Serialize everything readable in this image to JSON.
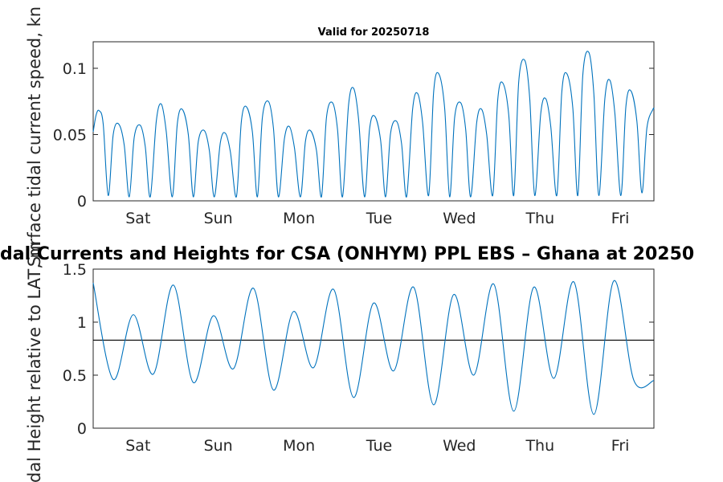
{
  "figure": {
    "main_title": "dal Currents and Heights for CSA (ONHYM) PPL EBS  – Ghana at 20250",
    "colors": {
      "series": "#0072bd",
      "axes": "#262626",
      "reference": "#000000"
    }
  },
  "chart_data": [
    {
      "type": "line",
      "title": "Valid for 20250718",
      "ylabel": "Surface tidal current speed, kn",
      "xlabel": "",
      "day_ticks": [
        "Sat",
        "Sun",
        "Mon",
        "Tue",
        "Wed",
        "Thu",
        "Fri"
      ],
      "xlim": [
        0,
        28
      ],
      "ylim": [
        0,
        0.12
      ],
      "yticks": [
        0,
        0.05,
        0.1
      ],
      "ytick_labels": [
        "0",
        "0.05",
        "0.1"
      ],
      "grid": false,
      "series": [
        {
          "x": [
            0,
            0.15,
            0.3,
            0.5,
            0.75,
            1,
            1.27,
            1.55,
            1.8,
            2.05,
            2.35,
            2.6,
            2.85,
            3.15,
            3.4,
            3.65,
            3.95,
            4.2,
            4.45,
            4.75,
            5.0,
            5.25,
            5.55,
            5.8,
            6.05,
            6.35,
            6.6,
            6.85,
            7.15,
            7.4,
            7.65,
            7.95,
            8.2,
            8.45,
            8.75,
            9.0,
            9.25,
            9.55,
            9.8,
            10.05,
            10.35,
            10.6,
            10.85,
            11.15,
            11.4,
            11.65,
            11.95,
            12.2,
            12.45,
            12.75,
            13.0,
            13.25,
            13.55,
            13.8,
            14.05,
            14.35,
            14.6,
            14.85,
            15.15,
            15.4,
            15.65,
            15.95,
            16.2,
            16.45,
            16.75,
            17.0,
            17.25,
            17.55,
            17.8,
            18.05,
            18.35,
            18.6,
            18.85,
            19.15,
            19.4,
            19.65,
            19.95,
            20.2,
            20.45,
            20.75,
            21.0,
            21.25,
            21.55,
            21.8,
            22.05,
            22.35,
            22.6,
            22.85,
            23.15,
            23.4,
            23.65,
            23.95,
            24.2,
            24.45,
            24.75,
            25.0,
            25.25,
            25.55,
            25.8,
            26.05,
            26.35,
            26.6,
            26.85,
            27.15,
            27.4,
            27.65,
            27.95,
            28
          ],
          "y": [
            0.052,
            0.065,
            0.068,
            0.058,
            0.004,
            0.05,
            0.058,
            0.042,
            0.003,
            0.048,
            0.057,
            0.041,
            0.003,
            0.06,
            0.073,
            0.052,
            0.003,
            0.058,
            0.069,
            0.05,
            0.003,
            0.045,
            0.053,
            0.038,
            0.003,
            0.044,
            0.051,
            0.037,
            0.003,
            0.06,
            0.071,
            0.052,
            0.003,
            0.063,
            0.075,
            0.055,
            0.003,
            0.047,
            0.056,
            0.04,
            0.003,
            0.045,
            0.053,
            0.038,
            0.003,
            0.063,
            0.074,
            0.054,
            0.003,
            0.072,
            0.085,
            0.062,
            0.003,
            0.054,
            0.064,
            0.046,
            0.003,
            0.051,
            0.06,
            0.043,
            0.003,
            0.069,
            0.081,
            0.059,
            0.004,
            0.082,
            0.096,
            0.07,
            0.003,
            0.063,
            0.074,
            0.054,
            0.003,
            0.059,
            0.069,
            0.05,
            0.004,
            0.076,
            0.089,
            0.065,
            0.004,
            0.09,
            0.106,
            0.077,
            0.004,
            0.066,
            0.077,
            0.056,
            0.004,
            0.082,
            0.096,
            0.07,
            0.004,
            0.095,
            0.112,
            0.081,
            0.004,
            0.077,
            0.091,
            0.066,
            0.004,
            0.071,
            0.083,
            0.06,
            0.006,
            0.055,
            0.069,
            0.069
          ]
        }
      ]
    },
    {
      "type": "line",
      "title": "",
      "ylabel": "Tidal Height relative to LAT, m",
      "xlabel": "",
      "day_ticks": [
        "Sat",
        "Sun",
        "Mon",
        "Tue",
        "Wed",
        "Thu",
        "Fri"
      ],
      "xlim": [
        0,
        28
      ],
      "ylim": [
        0,
        1.5
      ],
      "yticks": [
        0,
        0.5,
        1,
        1.5
      ],
      "ytick_labels": [
        "0",
        "0.5",
        "1",
        "1.5"
      ],
      "reference_line": 0.83,
      "grid": false,
      "series": [
        {
          "x": [
            0,
            1.0,
            2.0,
            3.0,
            4.0,
            5.0,
            6.0,
            7.0,
            8.0,
            9.0,
            10.0,
            11.0,
            12.0,
            13.0,
            14.0,
            15.0,
            16.0,
            17.0,
            18.0,
            19.0,
            20.0,
            21.0,
            22.0,
            23.0,
            24.0,
            25.0,
            26.0,
            27.0,
            28
          ],
          "y": [
            1.37,
            0.46,
            1.07,
            0.51,
            1.35,
            0.43,
            1.06,
            0.56,
            1.32,
            0.36,
            1.1,
            0.57,
            1.31,
            0.29,
            1.18,
            0.54,
            1.33,
            0.22,
            1.26,
            0.5,
            1.36,
            0.16,
            1.33,
            0.47,
            1.38,
            0.13,
            1.39,
            0.45,
            0.45
          ]
        }
      ]
    }
  ]
}
